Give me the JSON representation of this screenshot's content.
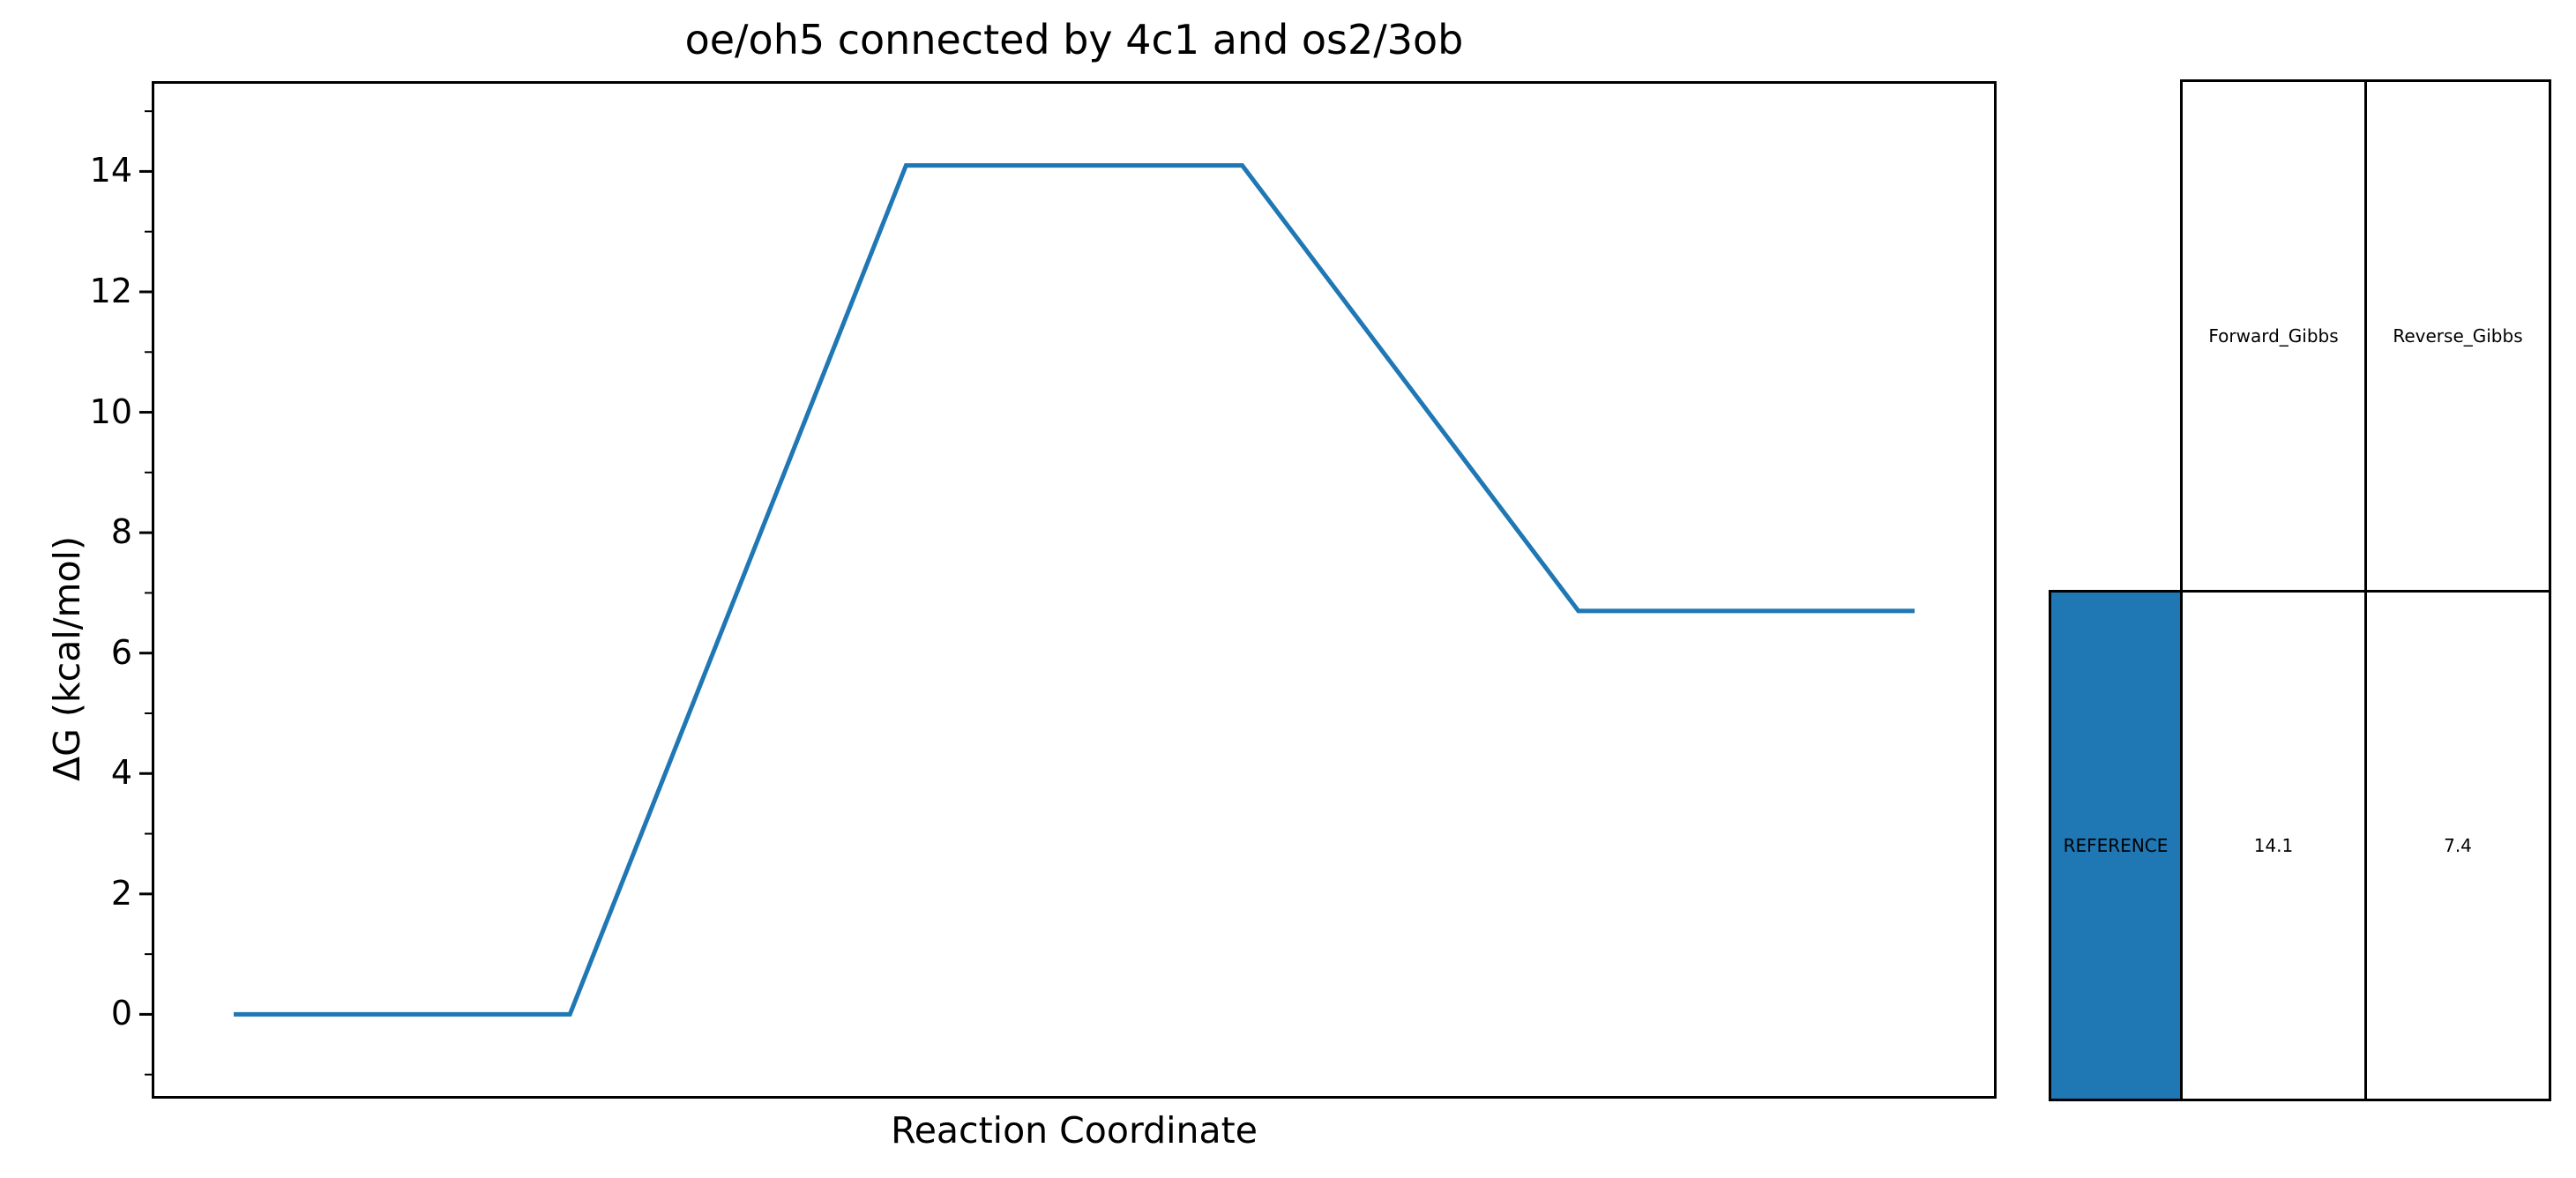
{
  "chart_data": {
    "type": "line",
    "title": "oe/oh5 connected by 4c1 and os2/3ob",
    "xlabel": "Reaction Coordinate",
    "ylabel": "ΔG (kcal/mol)",
    "ylim": [
      -1.4,
      15.5
    ],
    "y_ticks": [
      0,
      2,
      4,
      6,
      8,
      10,
      12,
      14
    ],
    "y_tick_labels": [
      "0",
      "2",
      "4",
      "6",
      "8",
      "10",
      "12",
      "14"
    ],
    "y_minor_step": 1,
    "x_ticks": [],
    "grid": false,
    "line_color": "#1f77b4",
    "series": [
      {
        "x": [
          0,
          1,
          2,
          3,
          4,
          5
        ],
        "y": [
          0,
          0,
          14.1,
          14.1,
          6.7,
          6.7
        ]
      }
    ],
    "table": {
      "col_headers": [
        "Forward_Gibbs",
        "Reverse_Gibbs"
      ],
      "row_header": "REFERENCE",
      "row_values": [
        "14.1",
        "7.4"
      ],
      "row_header_color": "#1f77b4"
    }
  }
}
